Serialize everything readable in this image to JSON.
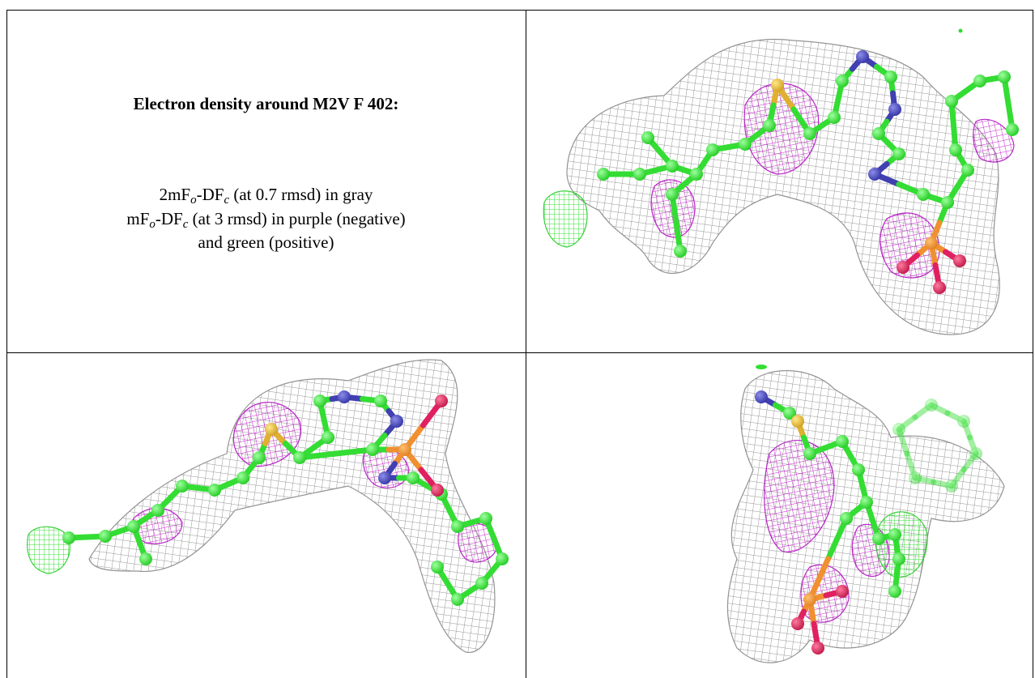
{
  "title": "Electron density around M2V F 402:",
  "legend": [
    [
      {
        "text": "2mF"
      },
      {
        "sub": "o"
      },
      {
        "text": "-DF"
      },
      {
        "sub": "c"
      },
      {
        "text": " (at 0.7 rmsd) in gray"
      }
    ],
    [
      {
        "text": "mF"
      },
      {
        "sub": "o"
      },
      {
        "text": "-DF"
      },
      {
        "sub": "c"
      },
      {
        "text": " (at 3 rmsd) in purple (negative)"
      }
    ],
    [
      {
        "text": "and green (positive)"
      }
    ]
  ]
}
